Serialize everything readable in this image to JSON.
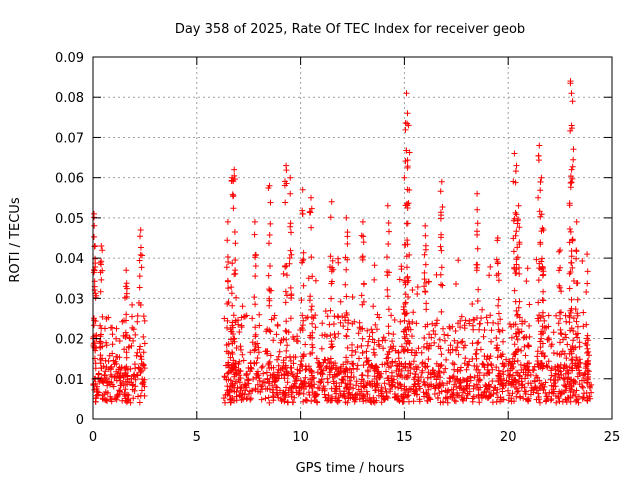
{
  "chart_data": {
    "type": "scatter",
    "title": "Day 358 of 2025, Rate Of TEC Index for receiver geob",
    "xlabel": "GPS time / hours",
    "ylabel": "ROTI / TECUs",
    "xlim": [
      0,
      25
    ],
    "ylim": [
      0,
      0.09
    ],
    "x_ticks": [
      0,
      5,
      10,
      15,
      20,
      25
    ],
    "x_tick_labels": [
      "0",
      "5",
      "10",
      "15",
      "20",
      "25"
    ],
    "y_ticks": [
      0,
      0.01,
      0.02,
      0.03,
      0.04,
      0.05,
      0.06,
      0.07,
      0.08,
      0.09
    ],
    "y_tick_labels": [
      "0",
      "0.01",
      "0.02",
      "0.03",
      "0.04",
      "0.05",
      "0.06",
      "0.07",
      "0.08",
      "0.09"
    ],
    "grid": true,
    "marker": "+",
    "marker_color": "#ff0000",
    "data_segments": [
      {
        "x_start": 0.0,
        "x_end": 2.5,
        "baseline": [
          0.004,
          0.014
        ],
        "spread_max": 0.03
      },
      {
        "x_start": 6.3,
        "x_end": 24.0,
        "baseline": [
          0.004,
          0.014
        ],
        "spread_max": 0.04
      }
    ],
    "peaks": [
      {
        "x": 0.05,
        "y": 0.051
      },
      {
        "x": 0.1,
        "y": 0.043
      },
      {
        "x": 0.4,
        "y": 0.043
      },
      {
        "x": 1.6,
        "y": 0.037
      },
      {
        "x": 2.3,
        "y": 0.047
      },
      {
        "x": 6.5,
        "y": 0.049
      },
      {
        "x": 6.7,
        "y": 0.06
      },
      {
        "x": 6.8,
        "y": 0.062
      },
      {
        "x": 7.8,
        "y": 0.049
      },
      {
        "x": 8.5,
        "y": 0.058
      },
      {
        "x": 9.3,
        "y": 0.063
      },
      {
        "x": 9.5,
        "y": 0.06
      },
      {
        "x": 10.1,
        "y": 0.057
      },
      {
        "x": 10.5,
        "y": 0.055
      },
      {
        "x": 11.5,
        "y": 0.054
      },
      {
        "x": 12.2,
        "y": 0.05
      },
      {
        "x": 13.0,
        "y": 0.049
      },
      {
        "x": 14.2,
        "y": 0.053
      },
      {
        "x": 15.0,
        "y": 0.06
      },
      {
        "x": 15.1,
        "y": 0.081
      },
      {
        "x": 15.15,
        "y": 0.076
      },
      {
        "x": 15.2,
        "y": 0.073
      },
      {
        "x": 16.0,
        "y": 0.048
      },
      {
        "x": 16.8,
        "y": 0.059
      },
      {
        "x": 18.5,
        "y": 0.056
      },
      {
        "x": 19.5,
        "y": 0.045
      },
      {
        "x": 20.3,
        "y": 0.066
      },
      {
        "x": 20.4,
        "y": 0.063
      },
      {
        "x": 20.5,
        "y": 0.053
      },
      {
        "x": 21.5,
        "y": 0.068
      },
      {
        "x": 21.6,
        "y": 0.06
      },
      {
        "x": 21.7,
        "y": 0.047
      },
      {
        "x": 22.5,
        "y": 0.042
      },
      {
        "x": 23.0,
        "y": 0.084
      },
      {
        "x": 23.05,
        "y": 0.081
      },
      {
        "x": 23.1,
        "y": 0.079
      },
      {
        "x": 23.3,
        "y": 0.049
      },
      {
        "x": 23.8,
        "y": 0.041
      }
    ]
  }
}
